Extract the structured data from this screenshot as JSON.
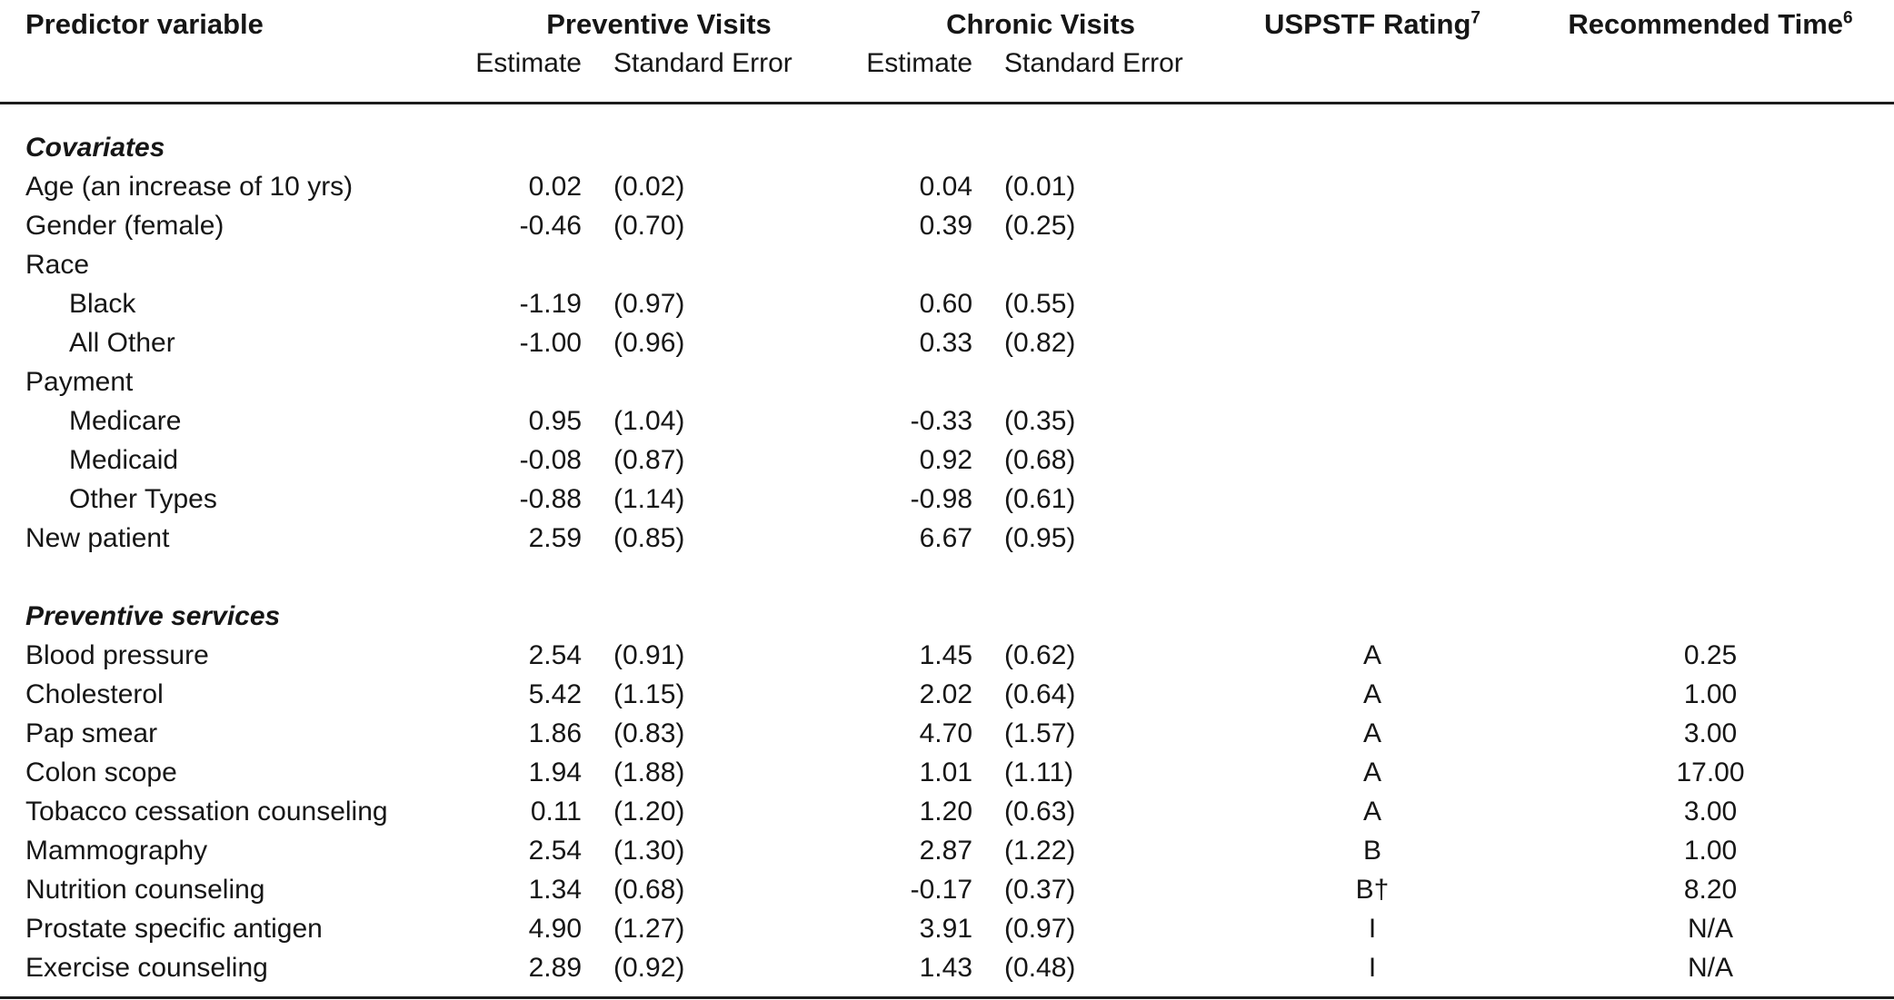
{
  "header": {
    "predictor_label": "Predictor variable",
    "preventive_group": "Preventive Visits",
    "chronic_group": "Chronic Visits",
    "preventive_estimate_label": "Estimate",
    "preventive_standard_error_label": "Standard Error",
    "chronic_estimate_label": "Estimate",
    "chronic_standard_error_label": "Standard Error",
    "uspstf_label": "USPSTF Rating",
    "uspstf_sup": "7",
    "time_label": "Recommended Time",
    "time_sup": "6"
  },
  "sections": [
    {
      "title": "Covariates",
      "rows": [
        {
          "label": "Age (an increase of 10 yrs)",
          "indent": false,
          "prev_est": "0.02",
          "prev_se": "(0.02)",
          "chron_est": "0.04",
          "chron_se": "(0.01)"
        },
        {
          "label": "Gender (female)",
          "indent": false,
          "prev_est": "-0.46",
          "prev_se": "(0.70)",
          "chron_est": "0.39",
          "chron_se": "(0.25)"
        },
        {
          "label": "Race",
          "indent": false
        },
        {
          "label": "Black",
          "indent": true,
          "prev_est": "-1.19",
          "prev_se": "(0.97)",
          "chron_est": "0.60",
          "chron_se": "(0.55)"
        },
        {
          "label": "All Other",
          "indent": true,
          "prev_est": "-1.00",
          "prev_se": "(0.96)",
          "chron_est": "0.33",
          "chron_se": "(0.82)"
        },
        {
          "label": "Payment",
          "indent": false
        },
        {
          "label": "Medicare",
          "indent": true,
          "prev_est": "0.95",
          "prev_se": "(1.04)",
          "chron_est": "-0.33",
          "chron_se": "(0.35)"
        },
        {
          "label": "Medicaid",
          "indent": true,
          "prev_est": "-0.08",
          "prev_se": "(0.87)",
          "chron_est": "0.92",
          "chron_se": "(0.68)"
        },
        {
          "label": "Other Types",
          "indent": true,
          "prev_est": "-0.88",
          "prev_se": "(1.14)",
          "chron_est": "-0.98",
          "chron_se": "(0.61)"
        },
        {
          "label": "New patient",
          "indent": false,
          "prev_est": "2.59",
          "prev_se": "(0.85)",
          "chron_est": "6.67",
          "chron_se": "(0.95)"
        }
      ]
    },
    {
      "title": "Preventive services",
      "rows": [
        {
          "label": "Blood pressure",
          "indent": false,
          "prev_est": "2.54",
          "prev_se": "(0.91)",
          "chron_est": "1.45",
          "chron_se": "(0.62)",
          "rating": "A",
          "time": "0.25"
        },
        {
          "label": "Cholesterol",
          "indent": false,
          "prev_est": "5.42",
          "prev_se": "(1.15)",
          "chron_est": "2.02",
          "chron_se": "(0.64)",
          "rating": "A",
          "time": "1.00"
        },
        {
          "label": "Pap smear",
          "indent": false,
          "prev_est": "1.86",
          "prev_se": "(0.83)",
          "chron_est": "4.70",
          "chron_se": "(1.57)",
          "rating": "A",
          "time": "3.00"
        },
        {
          "label": "Colon scope",
          "indent": false,
          "prev_est": "1.94",
          "prev_se": "(1.88)",
          "chron_est": "1.01",
          "chron_se": "(1.11)",
          "rating": "A",
          "time": "17.00"
        },
        {
          "label": "Tobacco cessation counseling",
          "indent": false,
          "prev_est": "0.11",
          "prev_se": "(1.20)",
          "chron_est": "1.20",
          "chron_se": "(0.63)",
          "rating": "A",
          "time": "3.00"
        },
        {
          "label": "Mammography",
          "indent": false,
          "prev_est": "2.54",
          "prev_se": "(1.30)",
          "chron_est": "2.87",
          "chron_se": "(1.22)",
          "rating": "B",
          "time": "1.00"
        },
        {
          "label": "Nutrition counseling",
          "indent": false,
          "prev_est": "1.34",
          "prev_se": "(0.68)",
          "chron_est": "-0.17",
          "chron_se": "(0.37)",
          "rating": "B†",
          "time": "8.20"
        },
        {
          "label": "Prostate specific antigen",
          "indent": false,
          "prev_est": "4.90",
          "prev_se": "(1.27)",
          "chron_est": "3.91",
          "chron_se": "(0.97)",
          "rating": "I",
          "time": "N/A"
        },
        {
          "label": "Exercise counseling",
          "indent": false,
          "prev_est": "2.89",
          "prev_se": "(0.92)",
          "chron_est": "1.43",
          "chron_se": "(0.48)",
          "rating": "I",
          "time": "N/A"
        }
      ]
    }
  ]
}
